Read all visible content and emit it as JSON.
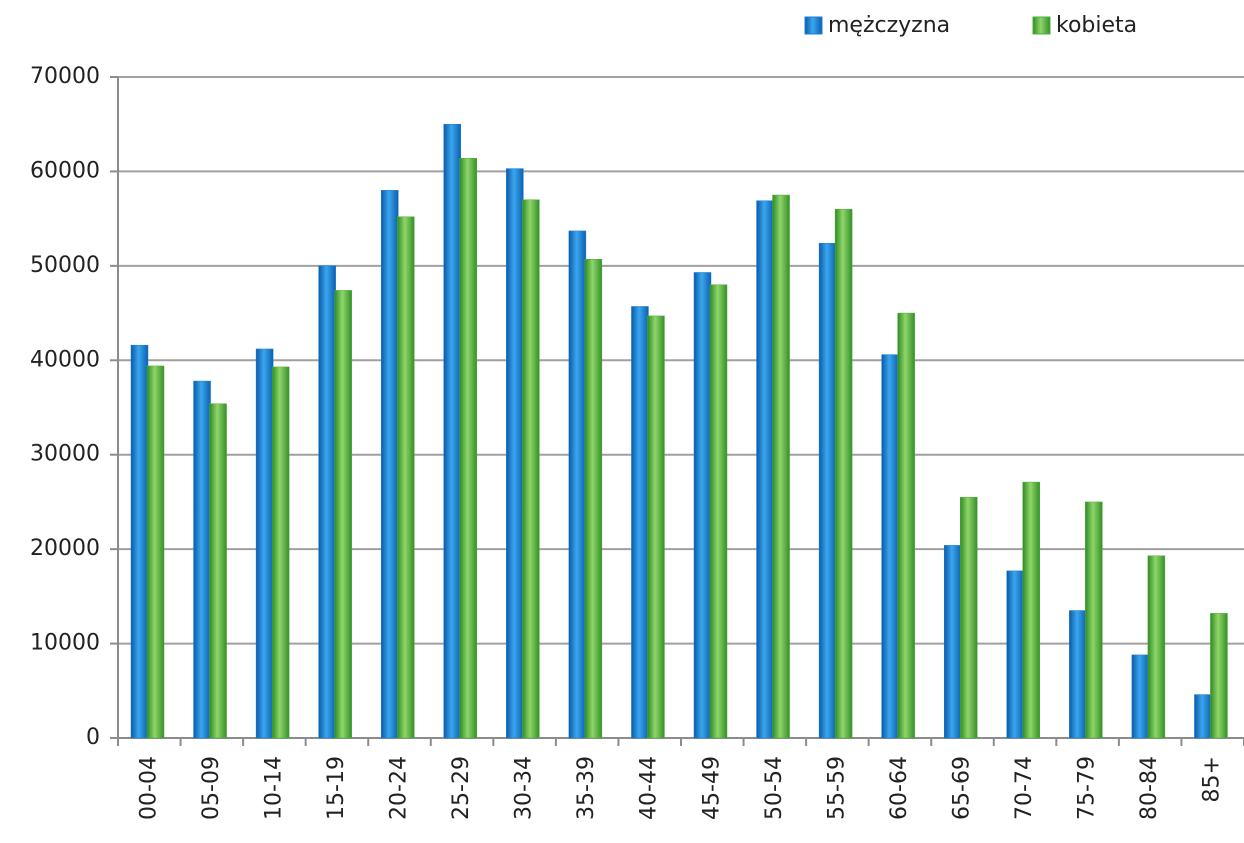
{
  "chart_data": {
    "type": "bar",
    "categories": [
      "00-04",
      "05-09",
      "10-14",
      "15-19",
      "20-24",
      "25-29",
      "30-34",
      "35-39",
      "40-44",
      "45-49",
      "50-54",
      "55-59",
      "60-64",
      "65-69",
      "70-74",
      "75-79",
      "80-84",
      "85+"
    ],
    "series": [
      {
        "name": "mężczyzna",
        "color": "#1f7fd0",
        "values": [
          41600,
          37800,
          41200,
          50000,
          58000,
          65000,
          60300,
          53700,
          45700,
          49300,
          56900,
          52400,
          40600,
          20400,
          17700,
          13500,
          8800,
          4600
        ]
      },
      {
        "name": "kobieta",
        "color": "#4caf3a",
        "values": [
          39400,
          35400,
          39300,
          47400,
          55200,
          61400,
          57000,
          50700,
          44700,
          48000,
          57500,
          56000,
          45000,
          25500,
          27100,
          25000,
          19300,
          13200
        ]
      }
    ],
    "ylim": [
      0,
      70000
    ],
    "yticks": [
      0,
      10000,
      20000,
      30000,
      40000,
      50000,
      60000,
      70000
    ],
    "grid": true,
    "legend": "top-right"
  }
}
